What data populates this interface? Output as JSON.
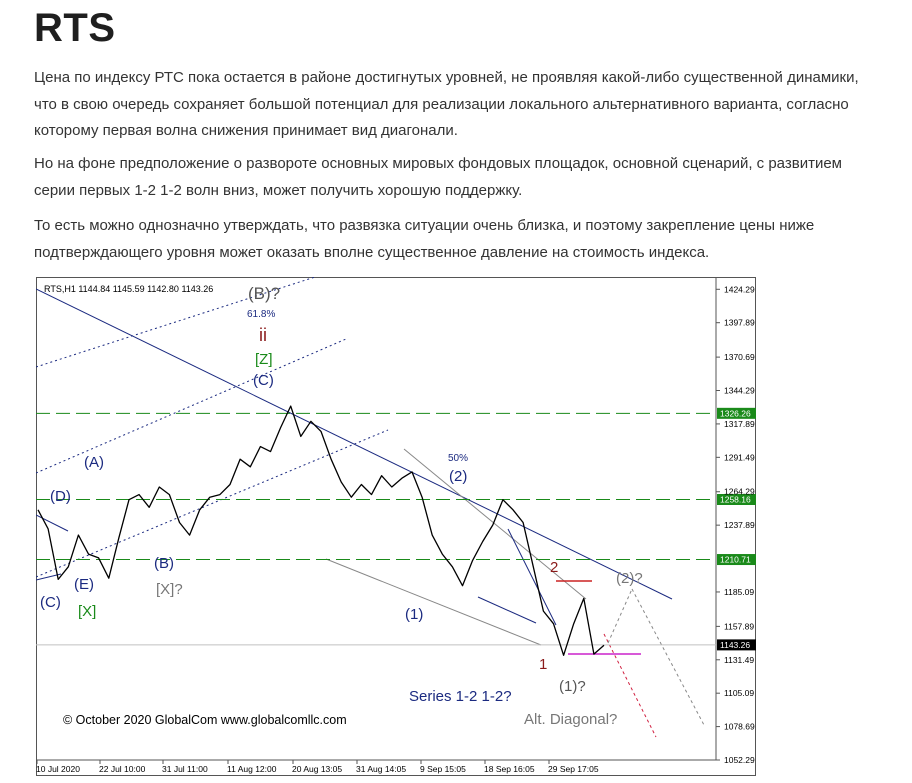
{
  "article": {
    "title": "RTS",
    "paragraphs": [
      "Цена по индексу РТС пока остается в районе достигнутых уровней, не проявляя какой-либо существенной динамики, что в свою очередь сохраняет большой потенциал для реализации локального альтернативного варианта, согласно которому первая волна снижения принимает вид диагонали.",
      "Но на фоне предположение о развороте основных мировых фондовых площадок, основной сценарий, с развитием серии первых 1-2 1-2 волн вниз, может получить хорошую поддержку.",
      "То есть можно однозначно утверждать, что развязка ситуации очень близка, и поэтому закрепление цены ниже подтверждающего уровня может оказать вполне существенное давление на стоимость индекса."
    ]
  },
  "chart_data": {
    "type": "line",
    "header": "RTS,H1  1144.84 1145.59 1142.80 1143.26",
    "copyright": "© October 2020 GlobalCom www.globalcomllc.com",
    "ylim": [
      1052.29,
      1434
    ],
    "y_ticks": [
      1424.29,
      1397.89,
      1370.69,
      1344.29,
      1317.89,
      1291.49,
      1264.29,
      1237.89,
      1185.09,
      1157.89,
      1131.49,
      1105.09,
      1078.69,
      1052.29
    ],
    "x_labels": [
      "10 Jul 2020",
      "22 Jul 10:00",
      "31 Jul 11:00",
      "11 Aug 12:00",
      "20 Aug 13:05",
      "31 Aug 14:05",
      "9 Sep 15:05",
      "18 Sep 16:05",
      "29 Sep 17:05"
    ],
    "levels": [
      {
        "value": 1326.26,
        "label": "1326.26",
        "color": "#1a8a1a",
        "style": "dashed"
      },
      {
        "value": 1258.16,
        "label": "1258.16",
        "color": "#1a8a1a",
        "style": "dashed"
      },
      {
        "value": 1210.71,
        "label": "1210.71",
        "color": "#1a8a1a",
        "style": "dashed"
      },
      {
        "value": 1143.26,
        "label": "1143.26",
        "color": "#000000",
        "style": "current"
      }
    ],
    "price": {
      "x": [
        0,
        1,
        2,
        3,
        4,
        5,
        6,
        7,
        8,
        9,
        10,
        11,
        12,
        13,
        14,
        15,
        16,
        17,
        18,
        19,
        20,
        21,
        22,
        23,
        24,
        25,
        26,
        27,
        28,
        29,
        30,
        31,
        32,
        33,
        34,
        35,
        36,
        37,
        38,
        39,
        40,
        41,
        42,
        43,
        44,
        45,
        46,
        47,
        48,
        49,
        50,
        51,
        52,
        53,
        54,
        55,
        56
      ],
      "y": [
        1250,
        1235,
        1195,
        1205,
        1230,
        1215,
        1212,
        1196,
        1228,
        1258,
        1262,
        1252,
        1268,
        1262,
        1240,
        1230,
        1250,
        1260,
        1262,
        1270,
        1290,
        1284,
        1300,
        1296,
        1315,
        1332,
        1308,
        1320,
        1312,
        1290,
        1272,
        1260,
        1270,
        1262,
        1277,
        1268,
        1275,
        1280,
        1260,
        1230,
        1215,
        1205,
        1190,
        1210,
        1225,
        1238,
        1258,
        1250,
        1240,
        1205,
        1170,
        1160,
        1135,
        1160,
        1180,
        1136,
        1143
      ]
    },
    "annotations": [
      {
        "text": "(B)?",
        "color": "#555555"
      },
      {
        "text": "61.8%",
        "color": "#1b2a80"
      },
      {
        "text": "ii",
        "color": "#8b1a1a"
      },
      {
        "text": "[Z]",
        "color": "#1a8a1a"
      },
      {
        "text": "(C)",
        "color": "#1b2a80"
      },
      {
        "text": "(A)",
        "color": "#1b2a80"
      },
      {
        "text": "(D)",
        "color": "#1b2a80"
      },
      {
        "text": "(E)",
        "color": "#1b2a80"
      },
      {
        "text": "(C)",
        "color": "#1b2a80"
      },
      {
        "text": "[X]",
        "color": "#1a8a1a"
      },
      {
        "text": "(B)",
        "color": "#1b2a80"
      },
      {
        "text": "[X]?",
        "color": "#777777"
      },
      {
        "text": "50%",
        "color": "#1b2a80"
      },
      {
        "text": "(2)",
        "color": "#1b2a80"
      },
      {
        "text": "(1)",
        "color": "#1b2a80"
      },
      {
        "text": "2",
        "color": "#8b1a1a"
      },
      {
        "text": "1",
        "color": "#8b1a1a"
      },
      {
        "text": "(2)?",
        "color": "#777777"
      },
      {
        "text": "(1)?",
        "color": "#555555"
      },
      {
        "text": "Series 1-2 1-2?",
        "color": "#1b2a80"
      },
      {
        "text": "Alt. Diagonal?",
        "color": "#777777"
      }
    ]
  }
}
